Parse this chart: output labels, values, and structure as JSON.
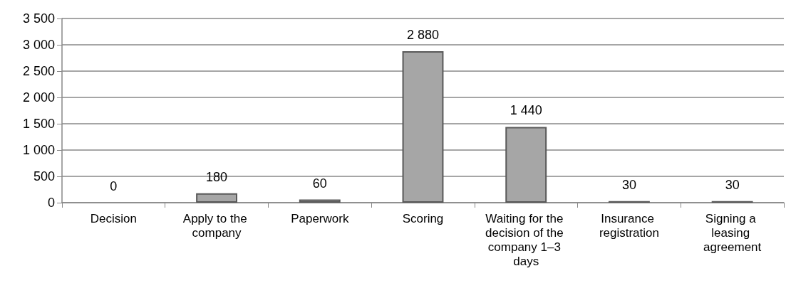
{
  "chart_data": {
    "type": "bar",
    "categories": [
      "Decision",
      "Apply to the company",
      "Paperwork",
      "Scoring",
      "Waiting for the decision of the company 1–3 days",
      "Insurance registration",
      "Signing a leasing agreement"
    ],
    "values": [
      0,
      180,
      60,
      2880,
      1440,
      30,
      30
    ],
    "value_labels": [
      "0",
      "180",
      "60",
      "2 880",
      "1 440",
      "30",
      "30"
    ],
    "color": "#a6a6a6",
    "ylim": [
      0,
      3500
    ],
    "yticks": [
      0,
      500,
      {
        "value": 1000,
        "label": "1 000"
      },
      {
        "value": 1500,
        "label": "1 500"
      },
      {
        "value": 2000,
        "label": "2 000"
      },
      {
        "value": 2500,
        "label": "2 500"
      },
      {
        "value": 3000,
        "label": "3 000"
      },
      {
        "value": 3500,
        "label": "3 500"
      }
    ],
    "grid": "y"
  }
}
